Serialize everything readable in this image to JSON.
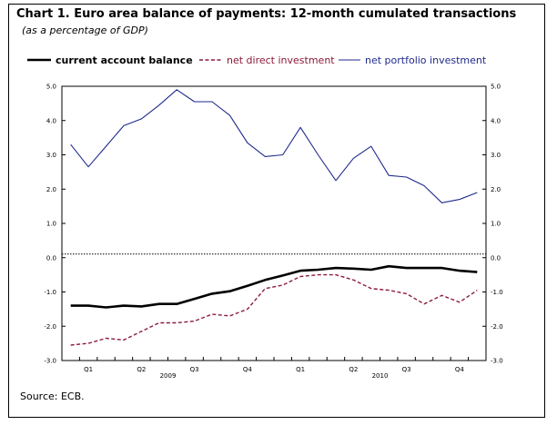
{
  "header": {
    "title": "Chart 1. Euro area balance of payments: 12-month cumulated transactions",
    "subtitle": "(as a percentage of GDP)"
  },
  "footer": {
    "source": "Source: ECB."
  },
  "colors": {
    "current_account": "#000000",
    "direct_investment": "#8b1a3a",
    "portfolio_investment": "#1f2a8c",
    "zero_line": "#000000"
  },
  "chart_data": {
    "type": "line",
    "x": [
      "Jan 2009",
      "Feb 2009",
      "Mar 2009",
      "Apr 2009",
      "May 2009",
      "Jun 2009",
      "Jul 2009",
      "Aug 2009",
      "Sep 2009",
      "Oct 2009",
      "Nov 2009",
      "Dec 2009",
      "Jan 2010",
      "Feb 2010",
      "Mar 2010",
      "Apr 2010",
      "May 2010",
      "Jun 2010",
      "Jul 2010",
      "Aug 2010",
      "Sep 2010",
      "Oct 2010",
      "Nov 2010",
      "Dec 2010"
    ],
    "x_tick_labels": [
      "Q1",
      "Q2",
      "Q3",
      "Q4",
      "Q1",
      "Q2",
      "Q3",
      "Q4"
    ],
    "year_labels": [
      "2009",
      "2010"
    ],
    "y_tick_labels": [
      "5.0",
      "4.0",
      "3.0",
      "2.0",
      "1.0",
      "0.0",
      "-1.0",
      "-2.0",
      "-3.0"
    ],
    "ylim": [
      -3.0,
      5.0
    ],
    "grid": false,
    "zero_line": "dotted",
    "legend_position": "top",
    "series": [
      {
        "name": "current account balance",
        "style": "solid-thick",
        "values": [
          -1.4,
          -1.4,
          -1.45,
          -1.4,
          -1.42,
          -1.35,
          -1.35,
          -1.2,
          -1.05,
          -0.98,
          -0.82,
          -0.65,
          -0.52,
          -0.38,
          -0.35,
          -0.3,
          -0.32,
          -0.35,
          -0.25,
          -0.3,
          -0.3,
          -0.3,
          -0.38,
          -0.42
        ]
      },
      {
        "name": "net direct investment",
        "style": "dashed",
        "values": [
          -2.55,
          -2.5,
          -2.35,
          -2.4,
          -2.15,
          -1.9,
          -1.9,
          -1.85,
          -1.65,
          -1.7,
          -1.5,
          -0.9,
          -0.8,
          -0.55,
          -0.5,
          -0.5,
          -0.65,
          -0.9,
          -0.95,
          -1.05,
          -1.35,
          -1.1,
          -1.3,
          -0.95
        ]
      },
      {
        "name": "net portfolio investment",
        "style": "solid-thin",
        "values": [
          3.3,
          2.65,
          3.25,
          3.85,
          4.05,
          4.45,
          4.9,
          4.55,
          4.55,
          4.15,
          3.35,
          2.95,
          3.0,
          3.8,
          3.0,
          2.25,
          2.9,
          3.25,
          2.4,
          2.35,
          2.1,
          1.6,
          1.7,
          1.9
        ]
      }
    ]
  }
}
